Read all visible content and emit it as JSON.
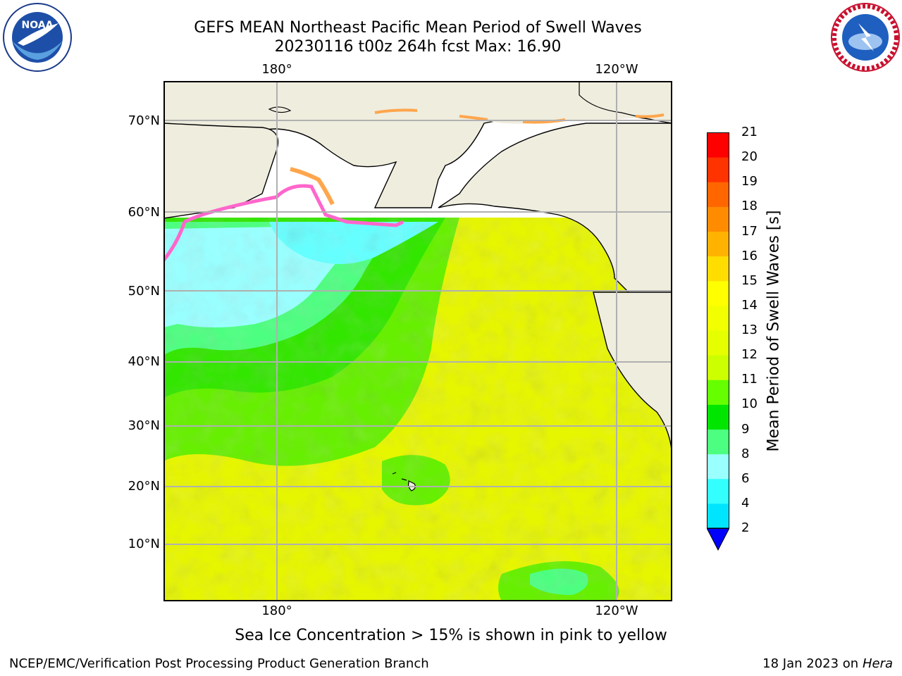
{
  "header": {
    "title_line1": "GEFS MEAN Northeast Pacific Mean Period of Swell Waves",
    "title_line2": "20230116 t00z 264h fcst   Max: 16.90"
  },
  "map": {
    "lon_labels": [
      "180°",
      "120°W"
    ],
    "lat_labels": [
      "70°N",
      "60°N",
      "50°N",
      "40°N",
      "30°N",
      "20°N",
      "10°N"
    ],
    "colors": {
      "land": "#efedde",
      "ocean_base": "#e6ef00",
      "ice_pink": "#ff66cc",
      "ice_orange": "#ffa64d"
    }
  },
  "colorbar": {
    "title": "Mean Period of Swell Waves [s]",
    "ticks": [
      "2",
      "4",
      "6",
      "8",
      "9",
      "10",
      "11",
      "12",
      "13",
      "14",
      "15",
      "16",
      "17",
      "18",
      "19",
      "20",
      "21"
    ],
    "bins": [
      "#0066ff",
      "#00e5ff",
      "#33ffff",
      "#99ffff",
      "#4dff80",
      "#00e600",
      "#66ff00",
      "#ccff00",
      "#e6ff00",
      "#f2ff00",
      "#ffff00",
      "#ffdd00",
      "#ffb300",
      "#ff8c00",
      "#ff6600",
      "#ff3300",
      "#ff0000"
    ],
    "extend_color": "#0000ff"
  },
  "footer": {
    "note": "Sea Ice Concentration > 15% is shown in pink to yellow",
    "credit": "NCEP/EMC/Verification Post Processing Product Generation Branch",
    "date": "18 Jan 2023 on ",
    "host": "Hera"
  },
  "logos": {
    "left": "NOAA",
    "right": "NATIONAL WEATHER SERVICE"
  }
}
